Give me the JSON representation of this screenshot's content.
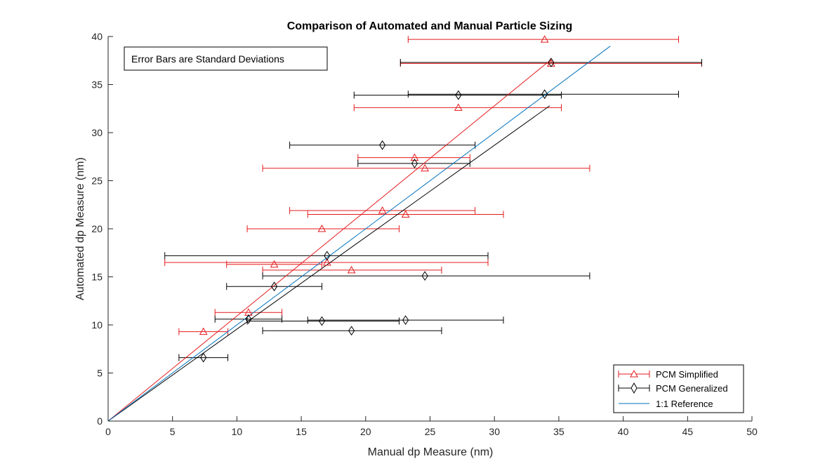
{
  "chart_data": {
    "type": "scatter",
    "title": "Comparison of Automated and Manual Particle Sizing",
    "xlabel": "Manual dp Measure (nm)",
    "ylabel": "Automated dp Measure (nm)",
    "xlim": [
      0,
      50
    ],
    "ylim": [
      0,
      40
    ],
    "xticks": [
      0,
      5,
      10,
      15,
      20,
      25,
      30,
      35,
      40,
      45,
      50
    ],
    "yticks": [
      0,
      5,
      10,
      15,
      20,
      25,
      30,
      35,
      40
    ],
    "annotation": "Error Bars are Standard Deviations",
    "legend_position": "bottom-right",
    "grid": false,
    "series": [
      {
        "name": "PCM Simplified",
        "color": "#e41a1c",
        "marker": "triangle",
        "points": [
          {
            "x": 7.4,
            "y": 9.3,
            "xneg": 1.9,
            "xpos": 1.9
          },
          {
            "x": 10.9,
            "y": 11.3,
            "xneg": 2.6,
            "xpos": 2.6
          },
          {
            "x": 12.9,
            "y": 16.3,
            "xneg": 3.7,
            "xpos": 3.7
          },
          {
            "x": 16.6,
            "y": 20.0,
            "xneg": 5.8,
            "xpos": 6.0
          },
          {
            "x": 17.0,
            "y": 16.5,
            "xneg": 12.6,
            "xpos": 12.5
          },
          {
            "x": 18.9,
            "y": 15.7,
            "xneg": 6.9,
            "xpos": 7.0
          },
          {
            "x": 21.3,
            "y": 21.9,
            "xneg": 7.2,
            "xpos": 7.2
          },
          {
            "x": 23.1,
            "y": 21.5,
            "xneg": 7.6,
            "xpos": 7.6
          },
          {
            "x": 23.8,
            "y": 27.4,
            "xneg": 4.4,
            "xpos": 4.3
          },
          {
            "x": 24.6,
            "y": 26.3,
            "xneg": 12.6,
            "xpos": 12.8
          },
          {
            "x": 27.2,
            "y": 32.6,
            "xneg": 8.1,
            "xpos": 8.0
          },
          {
            "x": 33.9,
            "y": 39.7,
            "xneg": 10.6,
            "xpos": 10.4
          },
          {
            "x": 34.4,
            "y": 37.2,
            "xneg": 11.7,
            "xpos": 11.7
          }
        ],
        "fit": {
          "x": [
            0,
            34.4
          ],
          "y": [
            0,
            37.6
          ]
        }
      },
      {
        "name": "PCM Generalized",
        "color": "#000000",
        "marker": "diamond",
        "points": [
          {
            "x": 7.4,
            "y": 6.6,
            "xneg": 1.9,
            "xpos": 1.9
          },
          {
            "x": 10.9,
            "y": 10.6,
            "xneg": 2.6,
            "xpos": 2.6
          },
          {
            "x": 12.9,
            "y": 14.0,
            "xneg": 3.7,
            "xpos": 3.7
          },
          {
            "x": 16.6,
            "y": 10.4,
            "xneg": 5.8,
            "xpos": 6.0
          },
          {
            "x": 17.0,
            "y": 17.2,
            "xneg": 12.6,
            "xpos": 12.5
          },
          {
            "x": 18.9,
            "y": 9.4,
            "xneg": 6.9,
            "xpos": 7.0
          },
          {
            "x": 21.3,
            "y": 28.7,
            "xneg": 7.2,
            "xpos": 7.2
          },
          {
            "x": 23.1,
            "y": 10.5,
            "xneg": 7.6,
            "xpos": 7.6
          },
          {
            "x": 23.8,
            "y": 26.8,
            "xneg": 4.4,
            "xpos": 4.3
          },
          {
            "x": 24.6,
            "y": 15.1,
            "xneg": 12.6,
            "xpos": 12.8
          },
          {
            "x": 27.2,
            "y": 33.9,
            "xneg": 8.1,
            "xpos": 8.0
          },
          {
            "x": 33.9,
            "y": 34.0,
            "xneg": 10.6,
            "xpos": 10.4
          },
          {
            "x": 34.4,
            "y": 37.3,
            "xneg": 11.7,
            "xpos": 11.7
          }
        ],
        "fit": {
          "x": [
            0,
            34.3
          ],
          "y": [
            0,
            32.8
          ]
        }
      },
      {
        "name": "1:1 Reference",
        "color": "#0072bd",
        "marker": "none",
        "line": {
          "x": [
            0,
            39
          ],
          "y": [
            0,
            39
          ]
        }
      }
    ]
  }
}
